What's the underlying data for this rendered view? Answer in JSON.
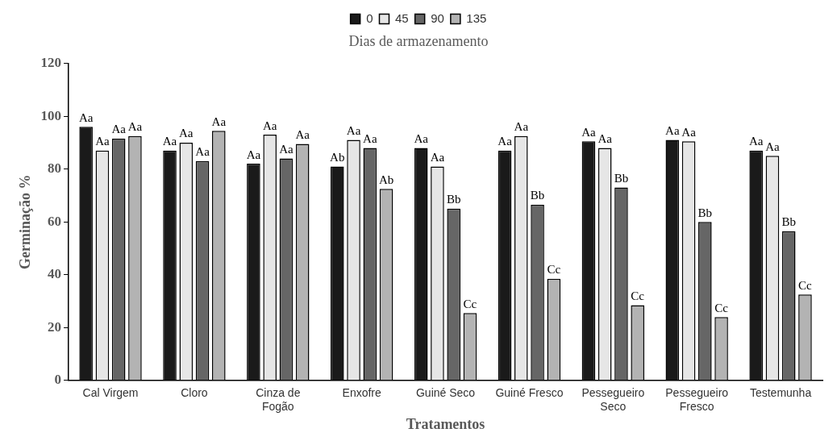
{
  "chart_data": {
    "type": "bar",
    "xlabel": "Tratamentos",
    "ylabel": "Germinação %",
    "legend_title": "Dias de armazenamento",
    "legend": "top",
    "categories": [
      "Cal Virgem",
      "Cloro",
      "Cinza de Fogão",
      "Enxofre",
      "Guiné Seco",
      "Guiné Fresco",
      "Pessegueiro Seco",
      "Pessegueiro Fresco",
      "Testemunha"
    ],
    "ylim": [
      0,
      120
    ],
    "yticks": [
      0,
      20,
      40,
      60,
      80,
      100,
      120
    ],
    "grid": false,
    "series": [
      {
        "name": "0",
        "color": "#1a1a1a",
        "values": [
          96,
          87,
          82,
          81,
          88,
          87,
          90.5,
          91,
          87
        ],
        "value_labels": [
          "Aa",
          "Aa",
          "Aa",
          "Ab",
          "Aa",
          "Aa",
          "Aa",
          "Aa",
          "Aa"
        ]
      },
      {
        "name": "45",
        "color": "#e6e6e6",
        "values": [
          87,
          90,
          93,
          91,
          81,
          92.5,
          88,
          90.5,
          85
        ],
        "value_labels": [
          "Aa",
          "Aa",
          "Aa",
          "Aa",
          "Aa",
          "Aa",
          "Aa",
          "Aa",
          "Aa"
        ]
      },
      {
        "name": "90",
        "color": "#666666",
        "values": [
          91.5,
          83,
          84,
          88,
          65,
          66.5,
          73,
          60,
          56.5
        ],
        "value_labels": [
          "Aa",
          "Aa",
          "Aa",
          "Aa",
          "Bb",
          "Bb",
          "Bb",
          "Bb",
          "Bb"
        ]
      },
      {
        "name": "135",
        "color": "#b3b3b3",
        "values": [
          92.5,
          94.5,
          89.5,
          72.5,
          25.5,
          38.5,
          28.5,
          24,
          32.5
        ],
        "value_labels": [
          "Aa",
          "Aa",
          "Aa",
          "Ab",
          "Cc",
          "Cc",
          "Cc",
          "Cc",
          "Cc"
        ]
      }
    ]
  }
}
